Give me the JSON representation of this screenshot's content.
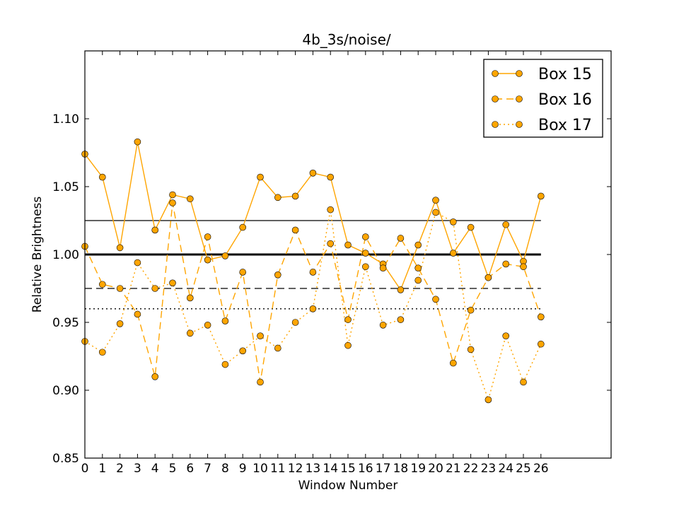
{
  "chart_data": {
    "type": "line",
    "title": "4b_3s/noise/",
    "xlabel": "Window Number",
    "ylabel": "Relative Brightness",
    "xlim": [
      0,
      30
    ],
    "ylim": [
      0.85,
      1.15
    ],
    "x_ticks": [
      0,
      1,
      2,
      3,
      4,
      5,
      6,
      7,
      8,
      9,
      10,
      11,
      12,
      13,
      14,
      15,
      16,
      17,
      18,
      19,
      20,
      21,
      22,
      23,
      24,
      25,
      26
    ],
    "y_ticks": [
      "0.85",
      "0.90",
      "0.95",
      "1.00",
      "1.05",
      "1.10"
    ],
    "grid": false,
    "legend_position": "top-right",
    "marker_color": "#FFA500",
    "line_color": "#FFA500",
    "x": [
      0,
      1,
      2,
      3,
      4,
      5,
      6,
      7,
      8,
      9,
      10,
      11,
      12,
      13,
      14,
      15,
      16,
      17,
      18,
      19,
      20,
      21,
      22,
      23,
      24,
      25,
      26
    ],
    "series": [
      {
        "name": "Box 15",
        "style": "solid",
        "values": [
          1.074,
          1.057,
          1.005,
          1.083,
          1.018,
          1.044,
          1.041,
          0.996,
          0.999,
          1.02,
          1.057,
          1.042,
          1.043,
          1.06,
          1.057,
          1.007,
          1.001,
          0.993,
          0.974,
          1.007,
          1.04,
          1.001,
          1.02,
          0.983,
          1.022,
          0.995,
          1.043
        ],
        "mean": 1.025
      },
      {
        "name": "Box 16",
        "style": "dashed",
        "values": [
          1.006,
          0.978,
          0.975,
          0.956,
          0.91,
          1.038,
          0.968,
          1.013,
          0.951,
          0.987,
          0.906,
          0.985,
          1.018,
          0.987,
          1.008,
          0.952,
          1.013,
          0.99,
          1.012,
          0.99,
          0.967,
          0.92,
          0.959,
          0.983,
          0.993,
          0.991,
          0.954
        ],
        "mean": 0.975
      },
      {
        "name": "Box 17",
        "style": "dotted",
        "values": [
          0.936,
          0.928,
          0.949,
          0.994,
          0.975,
          0.979,
          0.942,
          0.948,
          0.919,
          0.929,
          0.94,
          0.931,
          0.95,
          0.96,
          1.033,
          0.933,
          0.991,
          0.948,
          0.952,
          0.981,
          1.031,
          1.024,
          0.93,
          0.893,
          0.94,
          0.906,
          0.934
        ],
        "mean": 0.96
      }
    ],
    "reference_line": {
      "value": 1.0,
      "style": "thick-solid"
    }
  }
}
